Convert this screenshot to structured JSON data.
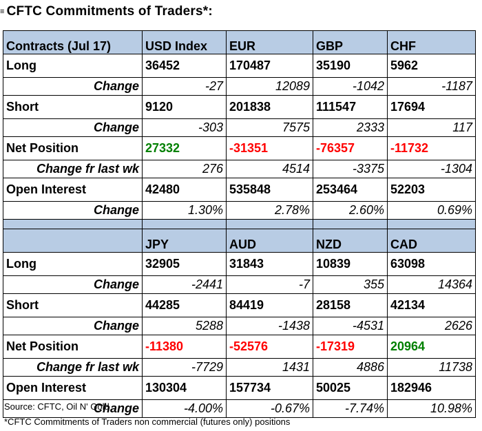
{
  "title": "CFTC Commitments of Traders*:",
  "title_mark": "≡",
  "table1": {
    "header": [
      "Contracts (Jul 17)",
      "USD Index",
      "EUR",
      "GBP",
      "CHF"
    ],
    "rows": [
      {
        "label": "Long",
        "values": [
          "36452",
          "170487",
          "35190",
          "5962"
        ]
      },
      {
        "label": "Change",
        "values": [
          "-27",
          "12089",
          "-1042",
          "-1187"
        ]
      },
      {
        "label": "Short",
        "values": [
          "9120",
          "201838",
          "111547",
          "17694"
        ]
      },
      {
        "label": "Change",
        "values": [
          "-303",
          "7575",
          "2333",
          "117"
        ]
      },
      {
        "label": "Net Position",
        "values": [
          "27332",
          "-31351",
          "-76357",
          "-11732"
        ]
      },
      {
        "label": "Change fr last wk",
        "values": [
          "276",
          "4514",
          "-3375",
          "-1304"
        ]
      },
      {
        "label": "Open Interest",
        "values": [
          "42480",
          "535848",
          "253464",
          "52203"
        ]
      },
      {
        "label": "Change",
        "values": [
          "1.30%",
          "2.78%",
          "2.60%",
          "0.69%"
        ]
      }
    ]
  },
  "table2": {
    "header": [
      "",
      "JPY",
      "AUD",
      "NZD",
      "CAD"
    ],
    "rows": [
      {
        "label": "Long",
        "values": [
          "32905",
          "31843",
          "10839",
          "63098"
        ]
      },
      {
        "label": "Change",
        "values": [
          "-2441",
          "-7",
          "355",
          "14364"
        ]
      },
      {
        "label": "Short",
        "values": [
          "44285",
          "84419",
          "28158",
          "42134"
        ]
      },
      {
        "label": "Change",
        "values": [
          "5288",
          "-1438",
          "-4531",
          "2626"
        ]
      },
      {
        "label": "Net Position",
        "values": [
          "-11380",
          "-52576",
          "-17319",
          "20964"
        ]
      },
      {
        "label": "Change fr last wk",
        "values": [
          "-7729",
          "1431",
          "4886",
          "11738"
        ]
      },
      {
        "label": "Open Interest",
        "values": [
          "130304",
          "157734",
          "50025",
          "182946"
        ]
      },
      {
        "label": "Change",
        "values": [
          "-4.00%",
          "-0.67%",
          "-7.74%",
          "10.98%"
        ]
      }
    ]
  },
  "footer": {
    "source": "Source: CFTC, Oil N' Gold",
    "note": "*CFTC Commitments of Traders non commercial (futures only) positions"
  },
  "colors": {
    "header_bg": "#b8cce4",
    "positive": "#008000",
    "negative": "#ff0000"
  }
}
